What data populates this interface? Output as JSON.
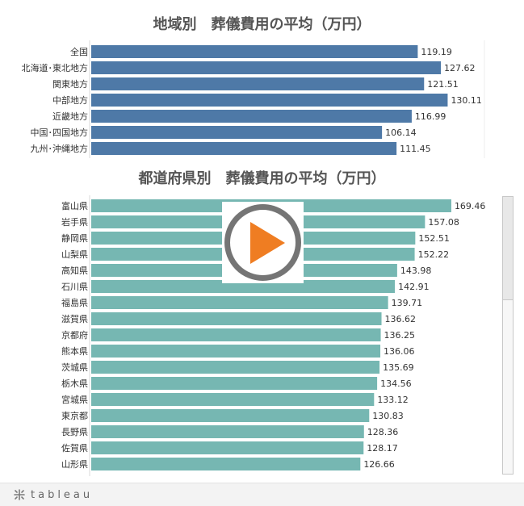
{
  "chart_data": [
    {
      "type": "bar",
      "orientation": "horizontal",
      "title": "地域別　葬儀費用の平均（万円）",
      "categories": [
        "全国",
        "北海道･東北地方",
        "関東地方",
        "中部地方",
        "近畿地方",
        "中国･四国地方",
        "九州･沖縄地方"
      ],
      "values": [
        119.19,
        127.62,
        121.51,
        130.11,
        116.99,
        106.14,
        111.45
      ],
      "value_labels": [
        "119.19",
        "127.62",
        "121.51",
        "130.11",
        "116.99",
        "106.14",
        "111.45"
      ],
      "color": "#4e79a7",
      "xlim": [
        0,
        140
      ],
      "grid": false
    },
    {
      "type": "bar",
      "orientation": "horizontal",
      "title": "都道府県別　葬儀費用の平均（万円）",
      "categories": [
        "富山県",
        "岩手県",
        "静岡県",
        "山梨県",
        "高知県",
        "石川県",
        "福島県",
        "滋賀県",
        "京都府",
        "熊本県",
        "茨城県",
        "栃木県",
        "宮城県",
        "東京都",
        "長野県",
        "佐賀県",
        "山形県"
      ],
      "values": [
        169.46,
        157.08,
        152.51,
        152.22,
        143.98,
        142.91,
        139.71,
        136.62,
        136.25,
        136.06,
        135.69,
        134.56,
        133.12,
        130.83,
        128.36,
        128.17,
        126.66
      ],
      "value_labels": [
        "169.46",
        "157.08",
        "152.51",
        "152.22",
        "143.98",
        "142.91",
        "139.71",
        "136.62",
        "136.25",
        "136.06",
        "135.69",
        "134.56",
        "133.12",
        "130.83",
        "128.36",
        "128.17",
        "126.66"
      ],
      "color": "#76b7b2",
      "xlim": [
        0,
        190
      ],
      "grid": false
    }
  ],
  "play_button": {
    "ring_color": "#757575",
    "triangle_color": "#ef7d22",
    "icon": "play-icon"
  },
  "footer": {
    "brand": "tableau",
    "icon": "tableau-icon"
  }
}
